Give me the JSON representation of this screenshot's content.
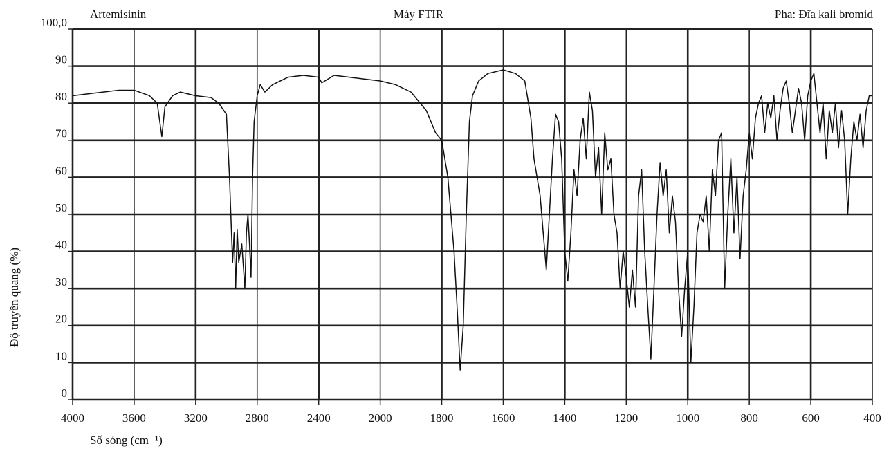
{
  "chart_data": {
    "type": "line",
    "title": "Máy FTIR",
    "sample": "Artemisinin",
    "phase": "Pha: Đĩa kali bromid",
    "x_label": "Số sóng (cm⁻¹)",
    "y_label": "Độ truyền quang (%)",
    "xlim": [
      4000,
      400
    ],
    "xticks": [
      4000,
      3600,
      3200,
      2800,
      2400,
      2000,
      1800,
      1600,
      1400,
      1200,
      1000,
      800,
      600,
      400
    ],
    "ylim": [
      0,
      100
    ],
    "yticks": [
      0,
      10,
      20,
      30,
      40,
      50,
      60,
      70,
      80,
      90,
      {
        "value": 100,
        "label": "100,0"
      }
    ],
    "grid": true,
    "color": "#111111",
    "x": [
      4000,
      3900,
      3800,
      3700,
      3600,
      3500,
      3450,
      3420,
      3400,
      3350,
      3300,
      3200,
      3100,
      3050,
      3000,
      2980,
      2960,
      2950,
      2940,
      2930,
      2920,
      2900,
      2880,
      2870,
      2860,
      2850,
      2840,
      2830,
      2820,
      2800,
      2780,
      2750,
      2700,
      2650,
      2600,
      2500,
      2400,
      2380,
      2300,
      2200,
      2100,
      2000,
      1950,
      1900,
      1850,
      1820,
      1800,
      1780,
      1760,
      1750,
      1740,
      1730,
      1720,
      1710,
      1700,
      1680,
      1650,
      1600,
      1560,
      1530,
      1510,
      1500,
      1480,
      1460,
      1450,
      1440,
      1430,
      1420,
      1410,
      1400,
      1390,
      1380,
      1370,
      1360,
      1350,
      1340,
      1330,
      1320,
      1310,
      1300,
      1290,
      1280,
      1270,
      1260,
      1250,
      1240,
      1230,
      1220,
      1210,
      1200,
      1190,
      1180,
      1170,
      1160,
      1150,
      1140,
      1130,
      1120,
      1110,
      1100,
      1090,
      1080,
      1070,
      1060,
      1050,
      1040,
      1030,
      1020,
      1010,
      1000,
      990,
      980,
      970,
      960,
      950,
      940,
      930,
      920,
      910,
      900,
      890,
      880,
      870,
      860,
      850,
      840,
      830,
      820,
      810,
      800,
      790,
      780,
      770,
      760,
      750,
      740,
      730,
      720,
      710,
      700,
      690,
      680,
      670,
      660,
      650,
      640,
      630,
      620,
      610,
      600,
      590,
      580,
      570,
      560,
      550,
      540,
      530,
      520,
      510,
      500,
      490,
      480,
      470,
      460,
      450,
      440,
      430,
      420,
      410,
      400
    ],
    "values": [
      82,
      82.5,
      83,
      83.5,
      83.5,
      82,
      80,
      71,
      79,
      82,
      83,
      82,
      81.5,
      80,
      77,
      60,
      37,
      45,
      30,
      46,
      37,
      42,
      30,
      45,
      50,
      42,
      33,
      60,
      75,
      82,
      85,
      83,
      85,
      86,
      87,
      87.5,
      87,
      85.5,
      87.5,
      87,
      86.5,
      86,
      85,
      83,
      78,
      72,
      70,
      60,
      40,
      25,
      8,
      20,
      50,
      75,
      82,
      86,
      88,
      89,
      88,
      86,
      76,
      65,
      55,
      35,
      50,
      65,
      77,
      75,
      65,
      40,
      32,
      45,
      62,
      55,
      70,
      76,
      65,
      83,
      78,
      60,
      68,
      50,
      72,
      62,
      65,
      50,
      45,
      30,
      40,
      33,
      25,
      35,
      25,
      55,
      62,
      40,
      25,
      11,
      30,
      50,
      64,
      55,
      62,
      45,
      55,
      48,
      30,
      17,
      30,
      40,
      10,
      25,
      45,
      50,
      48,
      55,
      40,
      62,
      55,
      70,
      72,
      30,
      50,
      65,
      45,
      60,
      38,
      55,
      62,
      72,
      65,
      76,
      80,
      82,
      72,
      80,
      76,
      82,
      70,
      78,
      84,
      86,
      80,
      72,
      78,
      84,
      80,
      70,
      82,
      86,
      88,
      80,
      72,
      80,
      65,
      78,
      72,
      80,
      68,
      78,
      70,
      50,
      65,
      75,
      70,
      77,
      68,
      78,
      82,
      82
    ]
  }
}
